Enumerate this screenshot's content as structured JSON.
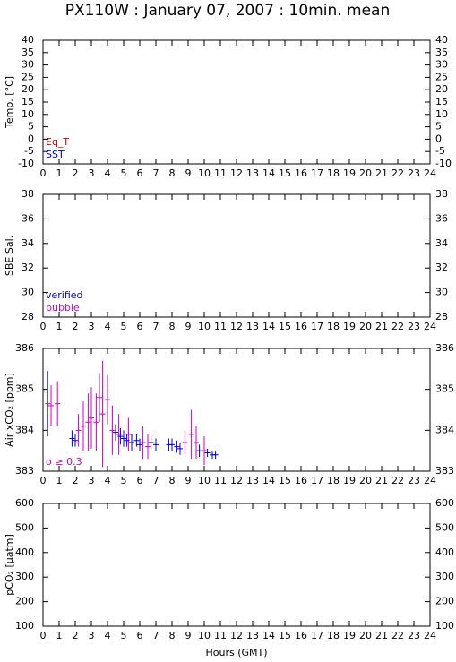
{
  "title": "PX110W : January 07, 2007 : 10min. mean",
  "chart_data": [
    {
      "type": "errorbar",
      "ylabel": "Temp. [°C]",
      "xlim": [
        0,
        24
      ],
      "xticks": [
        0,
        1,
        2,
        3,
        4,
        5,
        6,
        7,
        8,
        9,
        10,
        11,
        12,
        13,
        14,
        15,
        16,
        17,
        18,
        19,
        20,
        21,
        22,
        23,
        24
      ],
      "ylim": [
        -10,
        40
      ],
      "yticks": [
        -10,
        -5,
        0,
        5,
        10,
        15,
        20,
        25,
        30,
        35,
        40
      ],
      "series": [
        {
          "name": "Eq_T",
          "color": "#cc0000",
          "x": [],
          "values": [],
          "errors": []
        },
        {
          "name": "SST",
          "color": "#0000cc",
          "x": [],
          "values": [],
          "errors": []
        }
      ]
    },
    {
      "type": "errorbar",
      "ylabel": "SBE Sal.",
      "xlim": [
        0,
        24
      ],
      "xticks": [
        0,
        1,
        2,
        3,
        4,
        5,
        6,
        7,
        8,
        9,
        10,
        11,
        12,
        13,
        14,
        15,
        16,
        17,
        18,
        19,
        20,
        21,
        22,
        23,
        24
      ],
      "ylim": [
        28,
        38
      ],
      "yticks": [
        28,
        30,
        32,
        34,
        36,
        38
      ],
      "series": [
        {
          "name": "verified",
          "color": "#0000cc",
          "x": [],
          "values": [],
          "errors": []
        },
        {
          "name": "bubble",
          "color": "#cc00cc",
          "x": [],
          "values": [],
          "errors": []
        }
      ]
    },
    {
      "type": "errorbar",
      "ylabel": "Air xCO₂ [ppm]",
      "xlim": [
        0,
        24
      ],
      "xticks": [
        0,
        1,
        2,
        3,
        4,
        5,
        6,
        7,
        8,
        9,
        10,
        11,
        12,
        13,
        14,
        15,
        16,
        17,
        18,
        19,
        20,
        21,
        22,
        23,
        24
      ],
      "ylim": [
        383,
        386
      ],
      "yticks": [
        383,
        384,
        385,
        386
      ],
      "series": [
        {
          "name": "σ ≥ 0.3",
          "color": "#cc00cc",
          "x": [
            0.3,
            0.5,
            0.9,
            2.2,
            2.5,
            2.8,
            3.0,
            3.3,
            3.5,
            3.7,
            4.0,
            4.3,
            4.7,
            5.3,
            6.2,
            6.5,
            8.8,
            9.2,
            9.5,
            10.0
          ],
          "values": [
            384.65,
            384.6,
            384.65,
            384.0,
            384.1,
            384.2,
            384.3,
            384.2,
            384.8,
            384.4,
            384.75,
            384.0,
            383.9,
            383.9,
            383.7,
            383.6,
            383.7,
            383.9,
            383.7,
            383.5
          ],
          "errors": [
            0.8,
            0.5,
            0.55,
            0.4,
            0.6,
            0.7,
            0.75,
            0.7,
            0.6,
            1.3,
            0.6,
            0.6,
            0.5,
            0.4,
            0.4,
            0.3,
            0.3,
            0.6,
            0.4,
            0.35
          ]
        },
        {
          "color": "#0000cc",
          "x": [
            1.8,
            2.0,
            4.5,
            4.8,
            5.0,
            5.2,
            5.5,
            5.8,
            6.0,
            6.7,
            7.0,
            7.8,
            8.0,
            8.3,
            8.5,
            9.7,
            10.2,
            10.5,
            10.7
          ],
          "values": [
            383.8,
            383.75,
            383.95,
            383.85,
            383.8,
            383.75,
            383.7,
            383.75,
            383.65,
            383.7,
            383.65,
            383.65,
            383.65,
            383.6,
            383.55,
            383.5,
            383.45,
            383.4,
            383.4
          ],
          "errors": [
            0.2,
            0.15,
            0.2,
            0.2,
            0.2,
            0.15,
            0.2,
            0.15,
            0.15,
            0.15,
            0.15,
            0.15,
            0.15,
            0.15,
            0.15,
            0.15,
            0.1,
            0.1,
            0.1
          ]
        }
      ]
    },
    {
      "type": "errorbar",
      "ylabel": "pCO₂ [μatm]",
      "xlabel": "Hours (GMT)",
      "xlim": [
        0,
        24
      ],
      "xticks": [
        0,
        1,
        2,
        3,
        4,
        5,
        6,
        7,
        8,
        9,
        10,
        11,
        12,
        13,
        14,
        15,
        16,
        17,
        18,
        19,
        20,
        21,
        22,
        23,
        24
      ],
      "ylim": [
        100,
        600
      ],
      "yticks": [
        100,
        200,
        300,
        400,
        500,
        600
      ],
      "series": []
    }
  ]
}
